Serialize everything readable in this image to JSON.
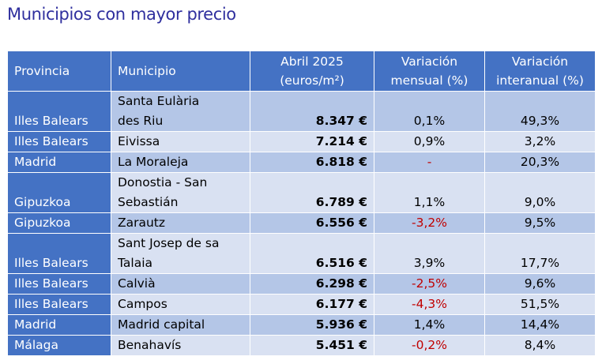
{
  "title": "Municipios con mayor precio",
  "table": {
    "headers": {
      "provincia": "Provincia",
      "municipio": "Municipio",
      "precio_line1": "Abril 2025",
      "precio_line2": "(euros/m²)",
      "mensual_line1": "Variación",
      "mensual_line2": "mensual (%)",
      "interanual_line1": "Variación",
      "interanual_line2": "interanual (%)"
    },
    "rows": [
      {
        "provincia": "Illes Balears",
        "municipio_l1": "Santa Eulària",
        "municipio_l2": "des Riu",
        "precio": "8.347 €",
        "mensual": "0,1%",
        "interanual": "49,3%"
      },
      {
        "provincia": "Illes Balears",
        "municipio": "Eivissa",
        "precio": "7.214 €",
        "mensual": "0,9%",
        "interanual": "3,2%"
      },
      {
        "provincia": "Madrid",
        "municipio": "La Moraleja",
        "precio": "6.818 €",
        "mensual": "-",
        "interanual": "20,3%"
      },
      {
        "provincia": "Gipuzkoa",
        "municipio_l1": "Donostia - San",
        "municipio_l2": "Sebastián",
        "precio": "6.789 €",
        "mensual": "1,1%",
        "interanual": "9,0%"
      },
      {
        "provincia": "Gipuzkoa",
        "municipio": "Zarautz",
        "precio": "6.556 €",
        "mensual": "-3,2%",
        "interanual": "9,5%"
      },
      {
        "provincia": "Illes Balears",
        "municipio_l1": "Sant Josep de sa",
        "municipio_l2": "Talaia",
        "precio": "6.516 €",
        "mensual": "3,9%",
        "interanual": "17,7%"
      },
      {
        "provincia": "Illes Balears",
        "municipio": "Calvià",
        "precio": "6.298 €",
        "mensual": "-2,5%",
        "interanual": "9,6%"
      },
      {
        "provincia": "Illes Balears",
        "municipio": "Campos",
        "precio": "6.177 €",
        "mensual": "-4,3%",
        "interanual": "51,5%"
      },
      {
        "provincia": "Madrid",
        "municipio": "Madrid capital",
        "precio": "5.936 €",
        "mensual": "1,4%",
        "interanual": "14,4%"
      },
      {
        "provincia": "Málaga",
        "municipio": "Benahavís",
        "precio": "5.451 €",
        "mensual": "-0,2%",
        "interanual": "8,4%"
      }
    ]
  },
  "colors": {
    "title": "#2f2f9e",
    "header_bg": "#4472c4",
    "row_dark": "#b4c6e7",
    "row_light": "#d9e1f2",
    "negative": "#c00000"
  }
}
